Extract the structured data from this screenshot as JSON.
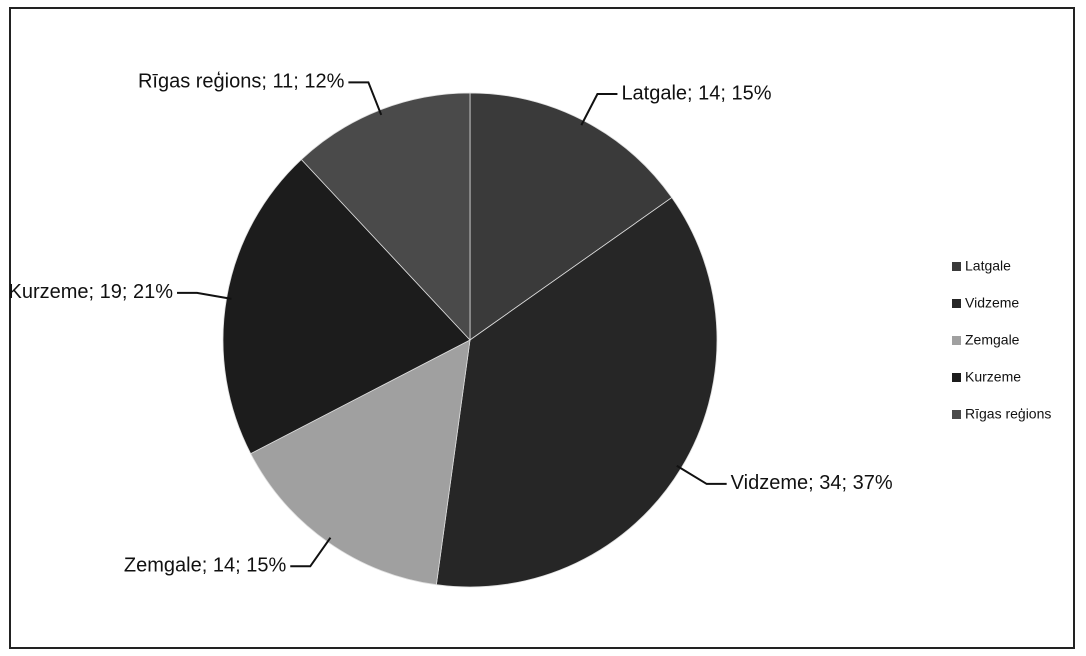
{
  "chart_data": {
    "type": "pie",
    "categories": [
      "Latgale",
      "Vidzeme",
      "Zemgale",
      "Kurzeme",
      "Rīgas reģions"
    ],
    "values": [
      14,
      34,
      14,
      19,
      11
    ],
    "value_labels": [
      "Latgale; 14; 15%",
      "Vidzeme; 34; 37%",
      "Zemgale; 14; 15%",
      "Kurzeme; 19; 21%",
      "Rīgas reģions; 11; 12%"
    ],
    "colors": [
      "#3a3a3a",
      "#262626",
      "#a0a0a0",
      "#1c1c1c",
      "#4a4a4a"
    ],
    "legend": "right"
  }
}
